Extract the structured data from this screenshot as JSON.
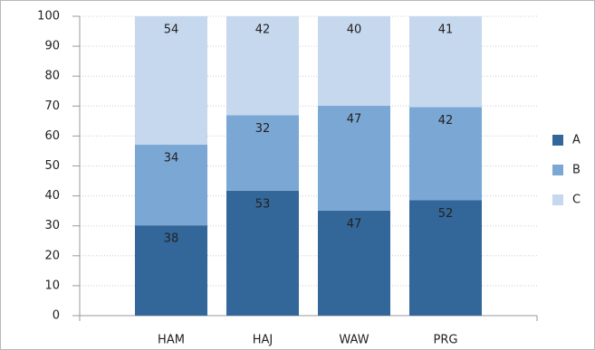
{
  "chart_data": {
    "type": "bar",
    "stacking": "percent",
    "categories": [
      "HAM",
      "HAJ",
      "WAW",
      "PRG"
    ],
    "series": [
      {
        "name": "A",
        "color": "#336699",
        "values": [
          38,
          53,
          47,
          52
        ]
      },
      {
        "name": "B",
        "color": "#7ba7d4",
        "values": [
          34,
          32,
          47,
          42
        ]
      },
      {
        "name": "C",
        "color": "#c6d8ee",
        "values": [
          54,
          42,
          40,
          41
        ]
      }
    ],
    "ylim": [
      0,
      100
    ],
    "yticks": [
      0,
      10,
      20,
      30,
      40,
      50,
      60,
      70,
      80,
      90,
      100
    ],
    "grid": true,
    "legend": "right"
  }
}
